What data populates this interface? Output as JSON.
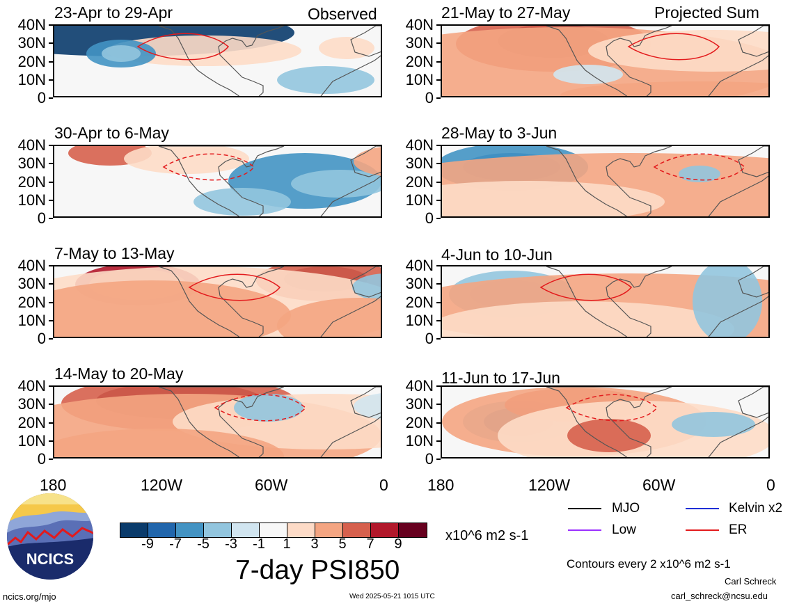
{
  "panels": [
    {
      "label": "23-Apr to 29-Apr",
      "header": "Observed",
      "pattern": 0
    },
    {
      "label": "30-Apr to 6-May",
      "header": "",
      "pattern": 1
    },
    {
      "label": "7-May to 13-May",
      "header": "",
      "pattern": 2
    },
    {
      "label": "14-May to 20-May",
      "header": "",
      "pattern": 3
    },
    {
      "label": "21-May to 27-May",
      "header": "Projected Sum",
      "pattern": 4
    },
    {
      "label": "28-May to 3-Jun",
      "header": "",
      "pattern": 5
    },
    {
      "label": "4-Jun to 10-Jun",
      "header": "",
      "pattern": 6
    },
    {
      "label": "11-Jun to 17-Jun",
      "header": "",
      "pattern": 7
    }
  ],
  "axes": {
    "lat_labels": [
      "40N",
      "30N",
      "20N",
      "10N",
      "0"
    ],
    "lon_labels": [
      "180",
      "120W",
      "60W",
      "0"
    ]
  },
  "colorbar": {
    "colors": [
      "#0a3b6b",
      "#2166ac",
      "#4393c3",
      "#92c5de",
      "#d1e5f0",
      "#f7f7f7",
      "#fddbc7",
      "#f4a582",
      "#d6604d",
      "#b2182b",
      "#67001f"
    ],
    "ticks": [
      "-9",
      "-7",
      "-5",
      "-3",
      "-1",
      "1",
      "3",
      "5",
      "7",
      "9"
    ],
    "units": "x10^6 m2 s-1"
  },
  "title": "7-day PSI850",
  "legend": [
    {
      "label": "MJO",
      "color": "#000000"
    },
    {
      "label": "Kelvin x2",
      "color": "#1f2fd6"
    },
    {
      "label": "Low",
      "color": "#9b30ff"
    },
    {
      "label": "ER",
      "color": "#e31a1c"
    }
  ],
  "contour_note": "Contours every 2 x10^6 m2 s-1",
  "logo": {
    "text": "NCICS"
  },
  "footer": {
    "left": "ncics.org/mjo",
    "center": "Wed 2025-05-21 1015 UTC",
    "right_name": "Carl Schreck",
    "right_email": "carl_schreck@ncsu.edu"
  }
}
